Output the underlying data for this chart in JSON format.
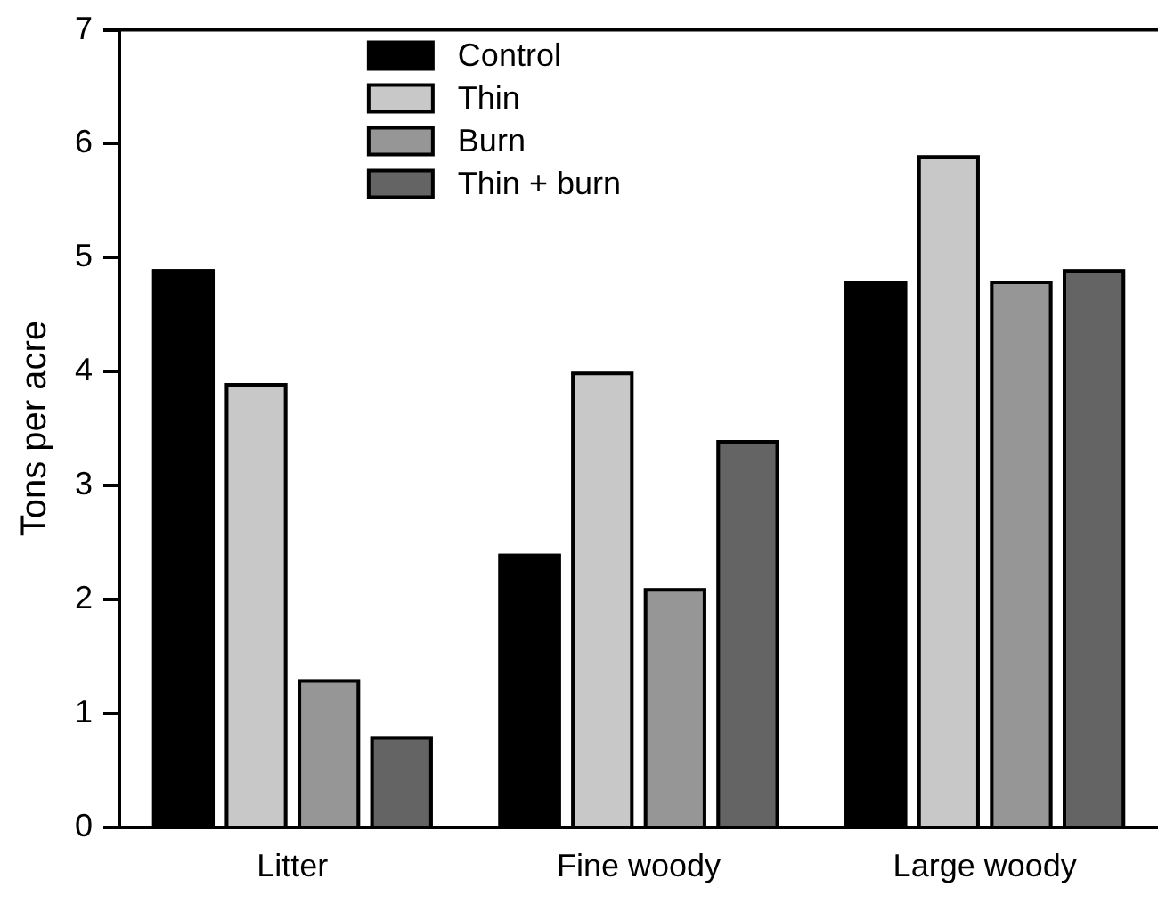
{
  "chart_data": {
    "type": "bar",
    "ylabel": "Tons per acre",
    "categories": [
      "Litter",
      "Fine woody",
      "Large woody"
    ],
    "series": [
      {
        "name": "Control",
        "color": "#000000",
        "values": [
          4.9,
          2.4,
          4.8
        ]
      },
      {
        "name": "Thin",
        "color": "#c8c8c8",
        "values": [
          3.9,
          4.0,
          5.9
        ]
      },
      {
        "name": "Burn",
        "color": "#969696",
        "values": [
          1.3,
          2.1,
          4.8
        ]
      },
      {
        "name": "Thin + burn",
        "color": "#646464",
        "values": [
          0.8,
          3.4,
          4.9
        ]
      }
    ],
    "ylim": [
      0,
      7
    ],
    "yticks": [
      0,
      1,
      2,
      3,
      4,
      5,
      6,
      7
    ],
    "grid": false,
    "legend": "top"
  }
}
